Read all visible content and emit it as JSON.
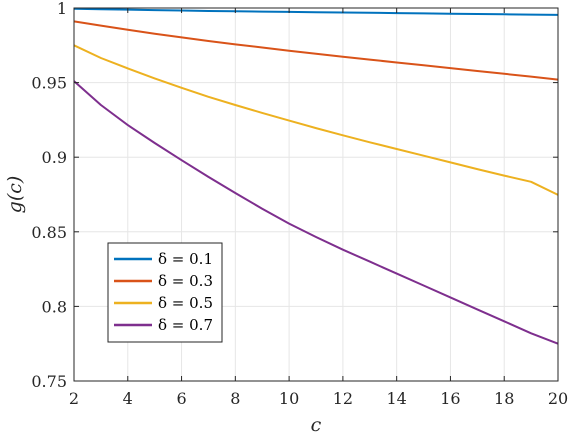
{
  "chart_data": {
    "type": "line",
    "title": "",
    "xlabel": "c",
    "ylabel": "g(c)",
    "xlim": [
      2,
      20
    ],
    "ylim": [
      0.75,
      1
    ],
    "xticks": [
      2,
      4,
      6,
      8,
      10,
      12,
      14,
      16,
      18,
      20
    ],
    "yticks": [
      0.75,
      0.8,
      0.85,
      0.9,
      0.95,
      1
    ],
    "ytick_labels": [
      "0.75",
      "0.8",
      "0.85",
      "0.9",
      "0.95",
      "1"
    ],
    "grid": true,
    "legend_position": "lower-left",
    "x": [
      2,
      3,
      4,
      5,
      6,
      7,
      8,
      9,
      10,
      11,
      12,
      13,
      14,
      15,
      16,
      17,
      18,
      19,
      20
    ],
    "series": [
      {
        "name": "δ = 0.1",
        "color": "#0072BD",
        "values": [
          0.9995,
          0.9992,
          0.9989,
          0.9986,
          0.9983,
          0.998,
          0.9978,
          0.9976,
          0.9974,
          0.9972,
          0.997,
          0.9968,
          0.9966,
          0.9964,
          0.9962,
          0.996,
          0.9958,
          0.9956,
          0.9954
        ]
      },
      {
        "name": "δ = 0.3",
        "color": "#D95319",
        "values": [
          0.991,
          0.9882,
          0.9854,
          0.9828,
          0.9803,
          0.9779,
          0.9756,
          0.9735,
          0.9714,
          0.9693,
          0.9673,
          0.9654,
          0.9635,
          0.9616,
          0.9597,
          0.9578,
          0.9559,
          0.954,
          0.952
        ]
      },
      {
        "name": "δ = 0.5",
        "color": "#EDB120",
        "values": [
          0.975,
          0.9665,
          0.9595,
          0.9528,
          0.9465,
          0.9405,
          0.935,
          0.9297,
          0.9245,
          0.9195,
          0.9147,
          0.91,
          0.9055,
          0.901,
          0.8965,
          0.892,
          0.8877,
          0.8835,
          0.8747
        ]
      },
      {
        "name": "δ = 0.7",
        "color": "#7E2F8E",
        "values": [
          0.951,
          0.935,
          0.9215,
          0.9095,
          0.898,
          0.8868,
          0.876,
          0.8655,
          0.8555,
          0.8465,
          0.838,
          0.83,
          0.822,
          0.814,
          0.806,
          0.798,
          0.79,
          0.782,
          0.775
        ]
      }
    ]
  }
}
